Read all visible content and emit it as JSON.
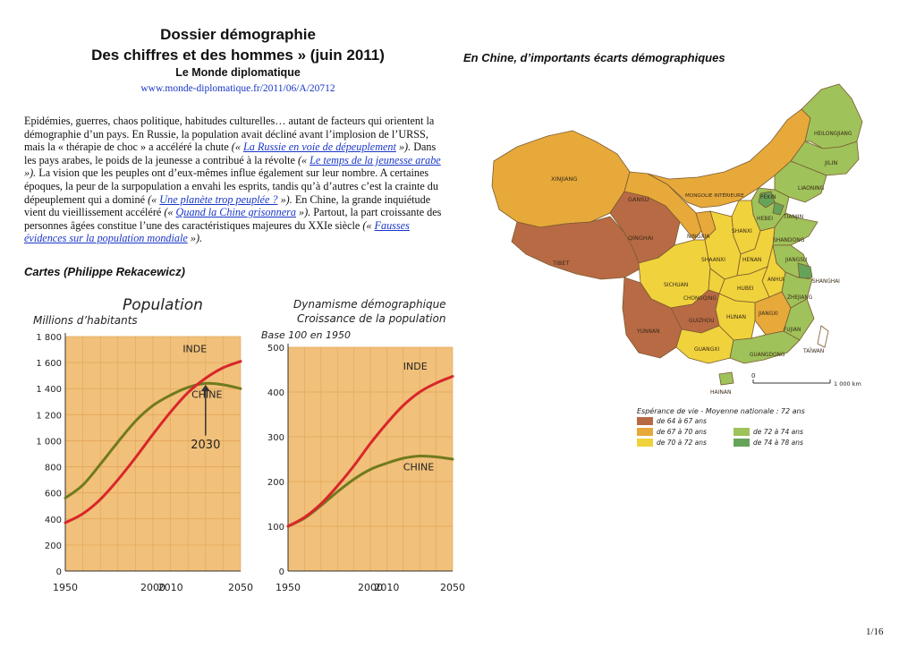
{
  "header": {
    "title_line1": "Dossier démographie",
    "title_line2": "Des chiffres et des hommes » (juin 2011)",
    "publication": "Le Monde diplomatique",
    "url": "www.monde-diplomatique.fr/2011/06/A/20712"
  },
  "article": {
    "p1": "Epidémies, guerres, chaos politique, habitudes culturelles… autant de facteurs qui orientent la démographie d’un pays. En Russie, la population avait décliné avant l’implosion de l’URSS, mais la « thérapie de choc » a accéléré la chute ",
    "open1": "(« ",
    "link1": "La Russie en voie de dépeuplement",
    "close1": " »).",
    "p2": " Dans les pays arabes, le poids de la jeunesse a contribué à la révolte ",
    "open2": "(« ",
    "link2": "Le temps de la jeunesse arabe",
    "close2": " »).",
    "p3": " La vision que les peuples ont d’eux-mêmes influe également sur leur nombre. A certaines époques, la peur de la surpopulation a envahi les esprits, tandis qu’à d’autres c’est la crainte du dépeuplement qui a dominé ",
    "open3": "(« ",
    "link3": "Une planète trop peuplée ?",
    "close3": " »).",
    "p4": " En Chine, la grande inquiétude vient du vieillissement accéléré ",
    "open4": "(« ",
    "link4": "Quand la Chine grisonnera",
    "close4": " »).",
    "p5": " Partout, la part croissante des personnes âgées constitue l’une des caractéristiques majeures du XXIe siècle ",
    "open5": "(« ",
    "link5": "Fausses évidences sur la population mondiale",
    "close5": " »)."
  },
  "section_title": "Cartes (Philippe Rekacewicz)",
  "map_title": "En Chine, d’importants écarts démographiques",
  "page_number": "1/16",
  "colors": {
    "chart_bg": "#f1c07a",
    "grid": "#e0a458",
    "inde_line": "#d8262a",
    "chine_line": "#6f7a1e",
    "dark_brown": "#b86a45",
    "orange": "#e7a93a",
    "yellow": "#f0d23c",
    "light_green": "#9fc25a",
    "dark_green": "#66a35a"
  },
  "chart_data": [
    {
      "type": "line",
      "title": "Population",
      "ylabel": "Millions d’habitants",
      "ylim": [
        0,
        1800
      ],
      "yticks": [
        "0",
        "200",
        "400",
        "600",
        "800",
        "1 000",
        "1 200",
        "1 400",
        "1 600",
        "1 800"
      ],
      "xlim": [
        1950,
        2050
      ],
      "xticks": [
        "1950",
        "2000",
        "2010",
        "2050"
      ],
      "annotation": "2030",
      "series": [
        {
          "name": "INDE",
          "x": [
            1950,
            1960,
            1970,
            1980,
            1990,
            2000,
            2010,
            2020,
            2030,
            2040,
            2050
          ],
          "values": [
            370,
            440,
            550,
            700,
            870,
            1050,
            1220,
            1370,
            1480,
            1560,
            1610
          ]
        },
        {
          "name": "CHINE",
          "x": [
            1950,
            1960,
            1970,
            1980,
            1990,
            2000,
            2010,
            2020,
            2030,
            2040,
            2050
          ],
          "values": [
            560,
            660,
            820,
            990,
            1150,
            1270,
            1350,
            1410,
            1440,
            1430,
            1400
          ]
        }
      ]
    },
    {
      "type": "line",
      "title": "Dynamisme démographique",
      "subtitle": "Croissance de la population",
      "ylabel": "Base 100 en 1950",
      "ylim": [
        0,
        500
      ],
      "yticks": [
        "0",
        "100",
        "200",
        "300",
        "400",
        "500"
      ],
      "xlim": [
        1950,
        2050
      ],
      "xticks": [
        "1950",
        "2000",
        "2010",
        "2050"
      ],
      "series": [
        {
          "name": "INDE",
          "x": [
            1950,
            1960,
            1970,
            1980,
            1990,
            2000,
            2010,
            2020,
            2030,
            2040,
            2050
          ],
          "values": [
            100,
            120,
            150,
            190,
            235,
            285,
            330,
            370,
            400,
            420,
            435
          ]
        },
        {
          "name": "CHINE",
          "x": [
            1950,
            1960,
            1970,
            1980,
            1990,
            2000,
            2010,
            2020,
            2030,
            2040,
            2050
          ],
          "values": [
            100,
            118,
            146,
            177,
            205,
            227,
            241,
            252,
            257,
            255,
            250
          ]
        }
      ]
    }
  ],
  "map": {
    "provinces": [
      {
        "label": "XINJIANG",
        "category": "orange"
      },
      {
        "label": "TIBET",
        "category": "dark_brown"
      },
      {
        "label": "QINGHAI",
        "category": "dark_brown"
      },
      {
        "label": "GANSU",
        "category": "orange"
      },
      {
        "label": "MONGOLIE INTÉRIEURE",
        "category": "orange"
      },
      {
        "label": "HEILONGJIANG",
        "category": "light_green"
      },
      {
        "label": "JILIN",
        "category": "light_green"
      },
      {
        "label": "LIAONING",
        "category": "light_green"
      },
      {
        "label": "PÉKIN",
        "category": "dark_green"
      },
      {
        "label": "HEBEI",
        "category": "light_green"
      },
      {
        "label": "TIANJIN",
        "category": "dark_green"
      },
      {
        "label": "NINGXIA",
        "category": "orange"
      },
      {
        "label": "SHANXI",
        "category": "yellow"
      },
      {
        "label": "SHANDONG",
        "category": "light_green"
      },
      {
        "label": "SHAANXI",
        "category": "yellow"
      },
      {
        "label": "HENAN",
        "category": "yellow"
      },
      {
        "label": "JIANGSU",
        "category": "light_green"
      },
      {
        "label": "SHANGHAI",
        "category": "dark_green"
      },
      {
        "label": "SICHUAN",
        "category": "yellow"
      },
      {
        "label": "CHONGQING",
        "category": "yellow"
      },
      {
        "label": "HUBEI",
        "category": "yellow"
      },
      {
        "label": "ANHUI",
        "category": "yellow"
      },
      {
        "label": "ZHEJIANG",
        "category": "light_green"
      },
      {
        "label": "HUNAN",
        "category": "yellow"
      },
      {
        "label": "JIANGXI",
        "category": "orange"
      },
      {
        "label": "FUJIAN",
        "category": "light_green"
      },
      {
        "label": "GUIZHOU",
        "category": "dark_brown"
      },
      {
        "label": "YUNNAN",
        "category": "dark_brown"
      },
      {
        "label": "GUANGXI",
        "category": "yellow"
      },
      {
        "label": "GUANGDONG",
        "category": "light_green"
      },
      {
        "label": "TAÏWAN",
        "category": "none"
      },
      {
        "label": "HAINAN",
        "category": "light_green"
      }
    ],
    "scale_zero": "0",
    "scale_label": "1 000 km",
    "legend_title": "Espérance de vie - Moyenne nationale : 72 ans",
    "legend": [
      {
        "label": "de 64 à 67 ans",
        "color": "#b86a45"
      },
      {
        "label": "de 67 à 70 ans",
        "color": "#e7a93a"
      },
      {
        "label": "de 70 à 72 ans",
        "color": "#f0d23c"
      },
      {
        "label": "de 72 à 74 ans",
        "color": "#9fc25a"
      },
      {
        "label": "de 74 à 78 ans",
        "color": "#66a35a"
      }
    ]
  }
}
